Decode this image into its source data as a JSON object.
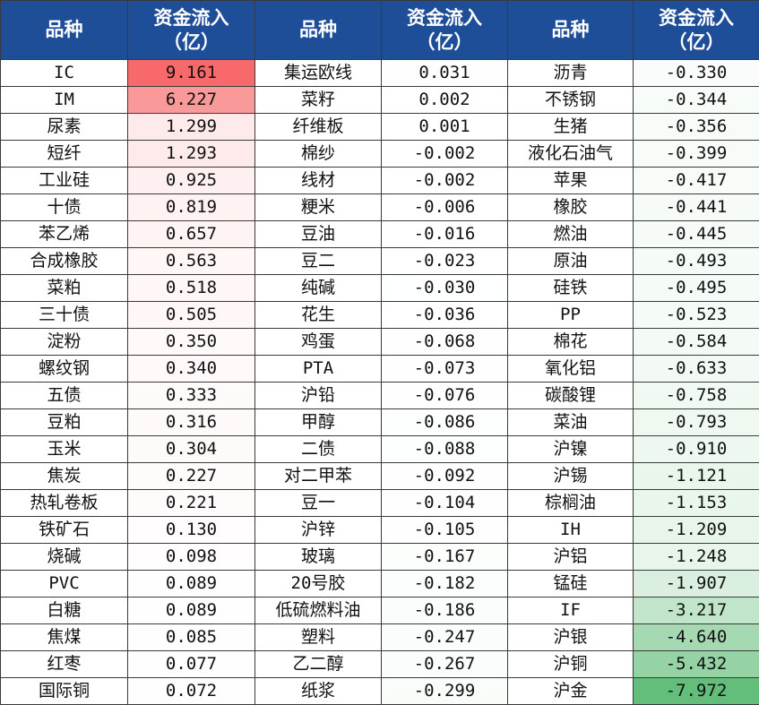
{
  "headers": [
    {
      "name": "品种",
      "flow": "资金流入",
      "unit": "（亿）"
    },
    {
      "name": "品种",
      "flow": "资金流入",
      "unit": "（亿）"
    },
    {
      "name": "品种",
      "flow": "资金流入",
      "unit": "（亿）"
    }
  ],
  "colors": {
    "header_bg": "#1f4e99",
    "positive_max": "#f8696b",
    "negative_max": "#63be7b",
    "neutral": "#ffffff"
  },
  "rows": [
    [
      {
        "name": "IC",
        "value": "9.161"
      },
      {
        "name": "集运欧线",
        "value": "0.031"
      },
      {
        "name": "沥青",
        "value": "-0.330"
      }
    ],
    [
      {
        "name": "IM",
        "value": "6.227"
      },
      {
        "name": "菜籽",
        "value": "0.002"
      },
      {
        "name": "不锈钢",
        "value": "-0.344"
      }
    ],
    [
      {
        "name": "尿素",
        "value": "1.299"
      },
      {
        "name": "纤维板",
        "value": "0.001"
      },
      {
        "name": "生猪",
        "value": "-0.356"
      }
    ],
    [
      {
        "name": "短纤",
        "value": "1.293"
      },
      {
        "name": "棉纱",
        "value": "-0.002"
      },
      {
        "name": "液化石油气",
        "value": "-0.399"
      }
    ],
    [
      {
        "name": "工业硅",
        "value": "0.925"
      },
      {
        "name": "线材",
        "value": "-0.002"
      },
      {
        "name": "苹果",
        "value": "-0.417"
      }
    ],
    [
      {
        "name": "十债",
        "value": "0.819"
      },
      {
        "name": "粳米",
        "value": "-0.006"
      },
      {
        "name": "橡胶",
        "value": "-0.441"
      }
    ],
    [
      {
        "name": "苯乙烯",
        "value": "0.657"
      },
      {
        "name": "豆油",
        "value": "-0.016"
      },
      {
        "name": "燃油",
        "value": "-0.445"
      }
    ],
    [
      {
        "name": "合成橡胶",
        "value": "0.563"
      },
      {
        "name": "豆二",
        "value": "-0.023"
      },
      {
        "name": "原油",
        "value": "-0.493"
      }
    ],
    [
      {
        "name": "菜粕",
        "value": "0.518"
      },
      {
        "name": "纯碱",
        "value": "-0.030"
      },
      {
        "name": "硅铁",
        "value": "-0.495"
      }
    ],
    [
      {
        "name": "三十债",
        "value": "0.505"
      },
      {
        "name": "花生",
        "value": "-0.036"
      },
      {
        "name": "PP",
        "value": "-0.523"
      }
    ],
    [
      {
        "name": "淀粉",
        "value": "0.350"
      },
      {
        "name": "鸡蛋",
        "value": "-0.068"
      },
      {
        "name": "棉花",
        "value": "-0.584"
      }
    ],
    [
      {
        "name": "螺纹钢",
        "value": "0.340"
      },
      {
        "name": "PTA",
        "value": "-0.073"
      },
      {
        "name": "氧化铝",
        "value": "-0.633"
      }
    ],
    [
      {
        "name": "五债",
        "value": "0.333"
      },
      {
        "name": "沪铅",
        "value": "-0.076"
      },
      {
        "name": "碳酸锂",
        "value": "-0.758"
      }
    ],
    [
      {
        "name": "豆粕",
        "value": "0.316"
      },
      {
        "name": "甲醇",
        "value": "-0.086"
      },
      {
        "name": "菜油",
        "value": "-0.793"
      }
    ],
    [
      {
        "name": "玉米",
        "value": "0.304"
      },
      {
        "name": "二债",
        "value": "-0.088"
      },
      {
        "name": "沪镍",
        "value": "-0.910"
      }
    ],
    [
      {
        "name": "焦炭",
        "value": "0.227"
      },
      {
        "name": "对二甲苯",
        "value": "-0.092"
      },
      {
        "name": "沪锡",
        "value": "-1.121"
      }
    ],
    [
      {
        "name": "热轧卷板",
        "value": "0.221"
      },
      {
        "name": "豆一",
        "value": "-0.104"
      },
      {
        "name": "棕榈油",
        "value": "-1.153"
      }
    ],
    [
      {
        "name": "铁矿石",
        "value": "0.130"
      },
      {
        "name": "沪锌",
        "value": "-0.105"
      },
      {
        "name": "IH",
        "value": "-1.209"
      }
    ],
    [
      {
        "name": "烧碱",
        "value": "0.098"
      },
      {
        "name": "玻璃",
        "value": "-0.167"
      },
      {
        "name": "沪铝",
        "value": "-1.248"
      }
    ],
    [
      {
        "name": "PVC",
        "value": "0.089"
      },
      {
        "name": "20号胶",
        "value": "-0.182"
      },
      {
        "name": "锰硅",
        "value": "-1.907"
      }
    ],
    [
      {
        "name": "白糖",
        "value": "0.089"
      },
      {
        "name": "低硫燃料油",
        "value": "-0.186"
      },
      {
        "name": "IF",
        "value": "-3.217"
      }
    ],
    [
      {
        "name": "焦煤",
        "value": "0.085"
      },
      {
        "name": "塑料",
        "value": "-0.247"
      },
      {
        "name": "沪银",
        "value": "-4.640"
      }
    ],
    [
      {
        "name": "红枣",
        "value": "0.077"
      },
      {
        "name": "乙二醇",
        "value": "-0.267"
      },
      {
        "name": "沪铜",
        "value": "-5.432"
      }
    ],
    [
      {
        "name": "国际铜",
        "value": "0.072"
      },
      {
        "name": "纸浆",
        "value": "-0.299"
      },
      {
        "name": "沪金",
        "value": "-7.972"
      }
    ]
  ]
}
